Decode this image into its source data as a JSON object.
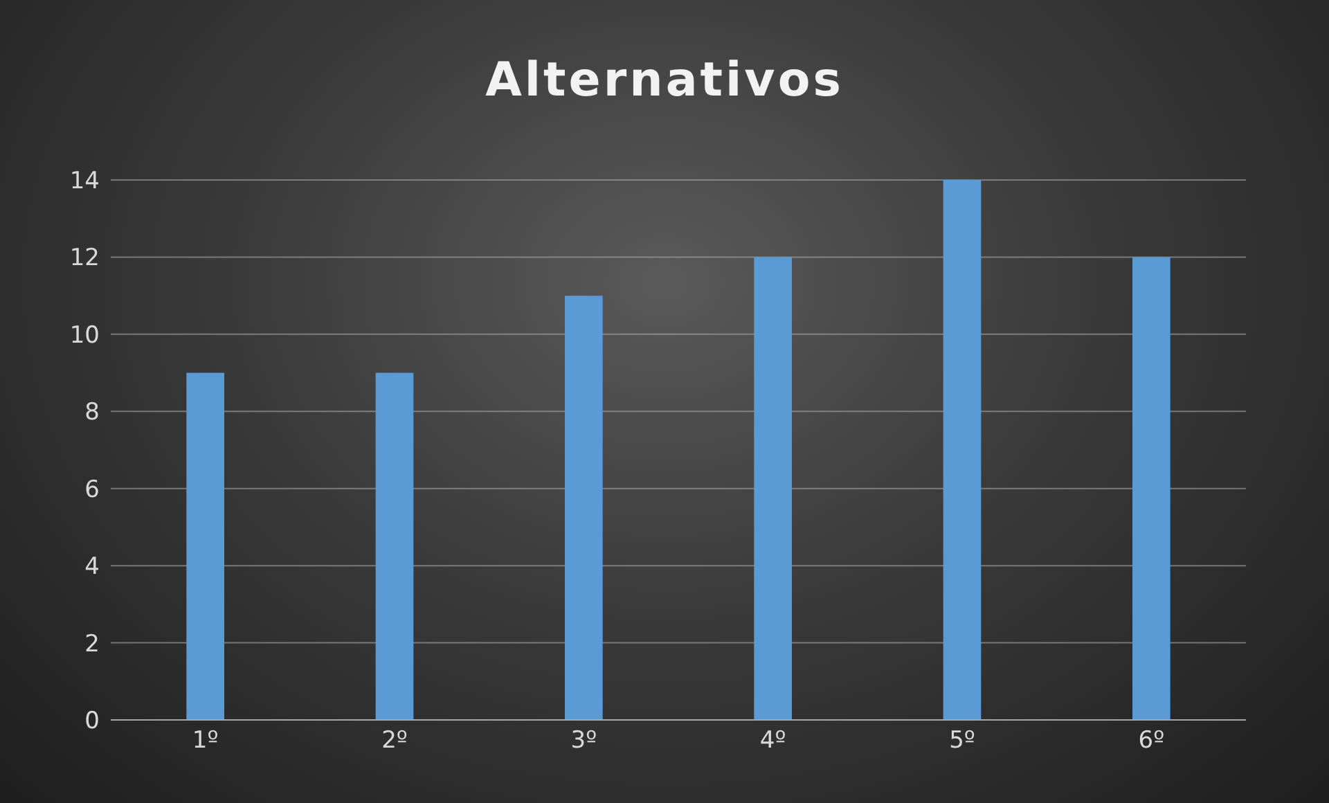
{
  "chart_data": {
    "type": "bar",
    "title": "Alternativos",
    "categories": [
      "1º",
      "2º",
      "3º",
      "4º",
      "5º",
      "6º"
    ],
    "values": [
      9,
      9,
      11,
      12,
      14,
      12
    ],
    "color": "#5b9bd5",
    "ylim": [
      0,
      14
    ],
    "yticks": [
      0,
      2,
      4,
      6,
      8,
      10,
      12,
      14
    ],
    "grid": "y"
  }
}
